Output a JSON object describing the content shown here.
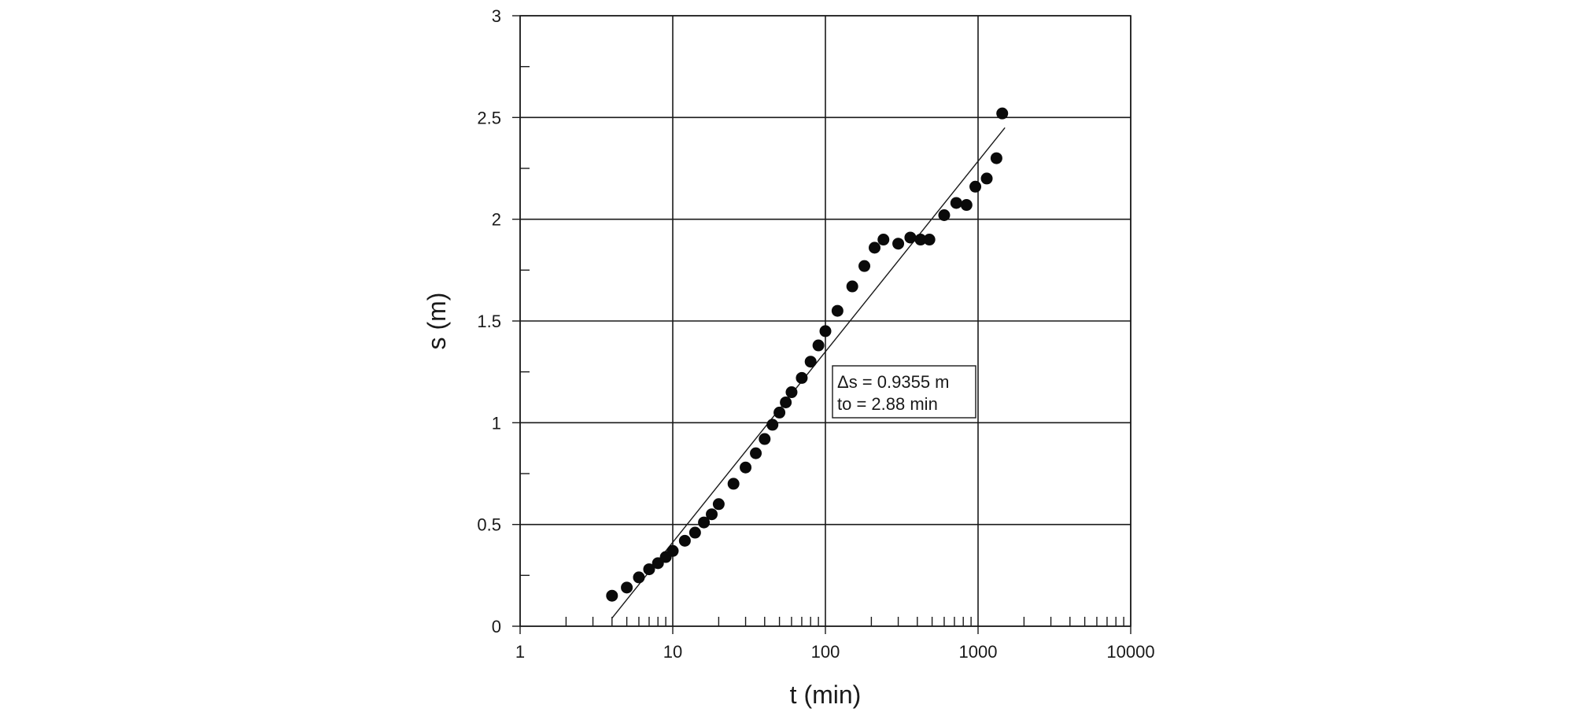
{
  "chart_data": {
    "type": "scatter",
    "title": "",
    "xlabel": "t (min)",
    "ylabel": "s (m)",
    "x_scale": "log",
    "y_scale": "linear",
    "xlim": [
      1,
      10000
    ],
    "ylim": [
      0,
      3
    ],
    "x_tick_labels": [
      "1",
      "10",
      "100",
      "1000",
      "10000"
    ],
    "y_tick_labels": [
      "0",
      "0.5",
      "1",
      "1.5",
      "2",
      "2.5",
      "3"
    ],
    "grid": true,
    "legend": "none",
    "annotation": {
      "lines": [
        "Δs = 0.9355 m",
        "to = 2.88 min"
      ],
      "position": "center-right of plot"
    },
    "fit_line": {
      "type": "straight line (Cooper-Jacob fit)",
      "x": [
        4,
        1500
      ],
      "y": [
        0.04,
        2.45
      ]
    },
    "series": [
      {
        "marker": "filled circle",
        "color": "#0a0a0a",
        "x": [
          4,
          5,
          6,
          7,
          8,
          9,
          10,
          12,
          14,
          16,
          18,
          20,
          25,
          30,
          35,
          40,
          45,
          50,
          55,
          60,
          70,
          80,
          90,
          100,
          120,
          150,
          180,
          210,
          240,
          300,
          360,
          420,
          480,
          600,
          720,
          840,
          960,
          1140,
          1320,
          1440
        ],
        "y": [
          0.15,
          0.19,
          0.24,
          0.28,
          0.31,
          0.34,
          0.37,
          0.42,
          0.46,
          0.51,
          0.55,
          0.6,
          0.7,
          0.78,
          0.85,
          0.92,
          0.99,
          1.05,
          1.1,
          1.15,
          1.22,
          1.3,
          1.38,
          1.45,
          1.55,
          1.67,
          1.77,
          1.86,
          1.9,
          1.88,
          1.91,
          1.9,
          1.9,
          2.02,
          2.08,
          2.07,
          2.16,
          2.2,
          2.3,
          2.52
        ]
      }
    ]
  }
}
